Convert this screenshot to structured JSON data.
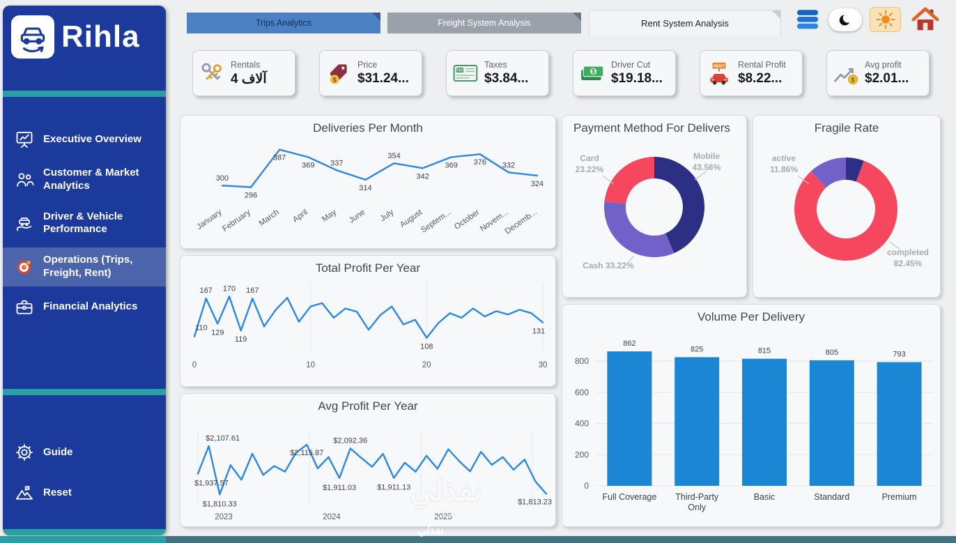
{
  "brand": {
    "name": "Rihla"
  },
  "colors": {
    "sidebar_blue": "#1b3a9c",
    "teal_accent": "#28a0a4",
    "line_blue": "#2b87e3",
    "bar_blue": "#1b86d3",
    "donut_navy": "#2c2f83",
    "donut_purple": "#7161c9",
    "donut_red": "#f6475f"
  },
  "sidebar": {
    "nav_items": [
      {
        "label": "Executive Overview",
        "icon": "presentation-icon",
        "active": false
      },
      {
        "label": "Customer & Market Analytics",
        "icon": "people-icon",
        "active": false
      },
      {
        "label": "Driver & Vehicle Performance",
        "icon": "hand-car-icon",
        "active": false
      },
      {
        "label": "Operations (Trips, Freight, Rent)",
        "icon": "target-icon",
        "active": true
      },
      {
        "label": "Financial Analytics",
        "icon": "briefcase-icon",
        "active": false
      }
    ],
    "footer_items": [
      {
        "label": "Guide",
        "icon": "gear-icon"
      },
      {
        "label": "Reset",
        "icon": "mountain-icon"
      }
    ]
  },
  "tabs": [
    {
      "label": "Trips Analytics",
      "active": false
    },
    {
      "label": "Freight System Analysis",
      "active": false
    },
    {
      "label": "Rent System Analysis",
      "active": true
    }
  ],
  "top_icons": [
    "menu-stack-icon",
    "moon-toggle-icon",
    "sun-icon",
    "home-icon"
  ],
  "kpis": [
    {
      "label": "Rentals",
      "value": "4 آلاف",
      "icon": "keys-icon"
    },
    {
      "label": "Price",
      "value": "$31.24...",
      "icon": "price-tag-icon"
    },
    {
      "label": "Taxes",
      "value": "$3.84...",
      "icon": "tax-icon"
    },
    {
      "label": "Driver Cut",
      "value": "$19.18...",
      "icon": "cash-icon"
    },
    {
      "label": "Rental Profit",
      "value": "$8.22...",
      "icon": "rental-car-icon"
    },
    {
      "label": "Avg profit",
      "value": "$2.01...",
      "icon": "avg-profit-icon"
    }
  ],
  "chart_data": [
    {
      "id": "deliveries_per_month",
      "type": "line",
      "title": "Deliveries Per Month",
      "categories": [
        "January",
        "February",
        "March",
        "April",
        "May",
        "June",
        "July",
        "August",
        "Septem...",
        "October",
        "Novem...",
        "Decemb..."
      ],
      "values": [
        300,
        296,
        387,
        369,
        337,
        314,
        354,
        342,
        369,
        376,
        332,
        324
      ],
      "ylim": [
        280,
        395
      ],
      "grid": false,
      "legend": "none"
    },
    {
      "id": "payment_method",
      "type": "donut",
      "title": "Payment Method For Delivers",
      "slices": [
        {
          "label": "Mobile",
          "value": 43.56,
          "color": "#2c2f83",
          "label_text": "Mobile 43.56%"
        },
        {
          "label": "Cash",
          "value": 33.22,
          "color": "#7161c9",
          "label_text": "Cash 33.22%"
        },
        {
          "label": "Card",
          "value": 23.22,
          "color": "#f6475f",
          "label_text": "Card 23.22%"
        }
      ]
    },
    {
      "id": "fragile_rate",
      "type": "donut",
      "title": "Fragile Rate",
      "slices": [
        {
          "label": "other",
          "value": 5.69,
          "color": "#2c2f83",
          "label_text": ""
        },
        {
          "label": "completed",
          "value": 82.45,
          "color": "#f6475f",
          "label_text": "completed 82.45%"
        },
        {
          "label": "active",
          "value": 11.86,
          "color": "#7161c9",
          "label_text": "active 11.86%"
        }
      ]
    },
    {
      "id": "total_profit_per_year",
      "type": "line",
      "title": "Total Profit Per Year",
      "x_ticks": [
        "0",
        "10",
        "20",
        "30"
      ],
      "values": [
        110,
        167,
        129,
        170,
        119,
        167,
        125,
        150,
        168,
        132,
        155,
        160,
        138,
        152,
        147,
        120,
        142,
        155,
        128,
        135,
        108,
        130,
        145,
        138,
        152,
        140,
        148,
        143,
        150,
        145,
        131
      ],
      "point_labels": [
        {
          "index": 0,
          "text": "110"
        },
        {
          "index": 1,
          "text": "167"
        },
        {
          "index": 2,
          "text": "129"
        },
        {
          "index": 3,
          "text": "170"
        },
        {
          "index": 4,
          "text": "119"
        },
        {
          "index": 5,
          "text": "167"
        },
        {
          "index": 20,
          "text": "108"
        },
        {
          "index": 30,
          "text": "131"
        }
      ],
      "ylim": [
        95,
        185
      ]
    },
    {
      "id": "avg_profit_per_year",
      "type": "line",
      "title": "Avg Profit Per Year",
      "x_ticks": [
        "2023",
        "2024",
        "2025"
      ],
      "values": [
        1937.57,
        2107.61,
        1810.33,
        1990,
        1900,
        2060,
        1930,
        1985,
        1950,
        2065,
        2115.87,
        1970,
        2040,
        1911.03,
        2092.36,
        2035,
        1980,
        2060,
        1911.13,
        2005,
        1950,
        2048,
        1968,
        2088,
        2015,
        1952,
        2072,
        1992,
        2040,
        1962,
        2025,
        1890,
        1813.23
      ],
      "point_labels": [
        {
          "index": 1,
          "text": "$2,107.61"
        },
        {
          "index": 0,
          "text": "$1,937.57"
        },
        {
          "index": 2,
          "text": "$1,810.33"
        },
        {
          "index": 10,
          "text": "$2,115.87"
        },
        {
          "index": 14,
          "text": "$2,092.36"
        },
        {
          "index": 13,
          "text": "$1,911.03"
        },
        {
          "index": 18,
          "text": "$1,911.13"
        },
        {
          "index": 32,
          "text": "$1,813.23"
        }
      ],
      "ylim": [
        1760,
        2180
      ]
    },
    {
      "id": "volume_per_delivery",
      "type": "bar",
      "title": "Volume Per Delivery",
      "categories": [
        "Full Coverage",
        "Third-Party Only",
        "Basic",
        "Standard",
        "Premium"
      ],
      "categories_lines": [
        [
          "Full Coverage"
        ],
        [
          "Third-Party",
          "Only"
        ],
        [
          "Basic"
        ],
        [
          "Standard"
        ],
        [
          "Premium"
        ]
      ],
      "values": [
        862,
        825,
        815,
        805,
        793
      ],
      "y_ticks": [
        0,
        200,
        400,
        600,
        800
      ],
      "ylim": [
        0,
        900
      ]
    }
  ],
  "watermark": {
    "text": "نفذلي"
  }
}
